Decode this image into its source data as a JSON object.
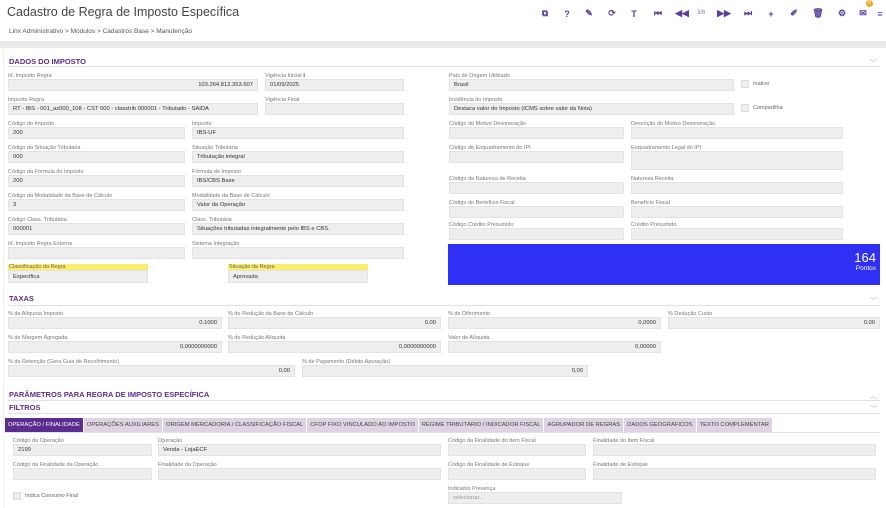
{
  "header": {
    "title": "Cadastro de Regra de Imposto Específica",
    "page_indicator": "3/6",
    "notification_count": "0",
    "tools": [
      {
        "icon": "copy-icon",
        "glyph": "⧉"
      },
      {
        "icon": "help-icon",
        "glyph": "?"
      },
      {
        "icon": "eraser-icon",
        "glyph": "✎"
      },
      {
        "icon": "refresh-icon",
        "glyph": "⟳"
      },
      {
        "icon": "filter-icon",
        "glyph": "T"
      },
      {
        "icon": "first-icon",
        "glyph": "⏮"
      },
      {
        "icon": "previous-icon",
        "glyph": "◀◀"
      },
      {
        "icon": "next-icon",
        "glyph": "▶▶"
      },
      {
        "icon": "last-icon",
        "glyph": "⏭"
      },
      {
        "icon": "add-icon",
        "glyph": "+"
      },
      {
        "icon": "edit-icon",
        "glyph": "✐"
      },
      {
        "icon": "delete-icon",
        "glyph": "🗑"
      },
      {
        "icon": "settings-icon",
        "glyph": "⚙"
      },
      {
        "icon": "inbox-icon",
        "glyph": "✉"
      },
      {
        "icon": "menu-icon",
        "glyph": "≡"
      }
    ]
  },
  "breadcrumb": "Linx Administrativo  >  Módulos  >  Cadastros Base  >  Manutenção",
  "sections": {
    "dados": "DADOS DO IMPOSTO",
    "taxas": "TAXAS",
    "parametros": "PARÂMETROS PARA REGRA DE IMPOSTO ESPECÍFICA",
    "filtros": "FILTROS"
  },
  "dados": {
    "id_regra": {
      "label": "Id. Imposto Regra",
      "value": "103.264.812.353.607"
    },
    "vig_ini": {
      "label": "Vigência Inicial ℹ",
      "value": "01/09/2025"
    },
    "imposto_regra": {
      "label": "Imposto Regra",
      "value": "RT - IBS - 001_az000_108 - CST 000 - classtrib 000001 - Tributado - SAIDA"
    },
    "vig_fim": {
      "label": "Vigência Final",
      "value": ""
    },
    "cod_imposto": {
      "label": "Código do Imposto",
      "value": "200"
    },
    "imposto": {
      "label": "Imposto",
      "value": "IBS-UF"
    },
    "cod_sit": {
      "label": "Código da Situação Tributária",
      "value": "000"
    },
    "sit": {
      "label": "Situação Tributária",
      "value": "Tributação integral"
    },
    "cod_form": {
      "label": "Código da Fórmula do Imposto",
      "value": "200"
    },
    "form": {
      "label": "Fórmula do Imposto",
      "value": "IBS/CBS Base"
    },
    "cod_mod": {
      "label": "Código da Modalidade da Base de Cálculo",
      "value": "3"
    },
    "mod": {
      "label": "Modalidade da Base de Cálculo",
      "value": "Valor da Operação"
    },
    "cod_class": {
      "label": "Código Class. Tributária",
      "value": "000001"
    },
    "class": {
      "label": "Class. Tributária",
      "value": "Situações tributadas integralmente pelo IBS e CBS."
    },
    "id_ext": {
      "label": "Id. Imposto Regra Externa",
      "value": ""
    },
    "sis_int": {
      "label": "Sistema Integração",
      "value": ""
    },
    "classif": {
      "label": "Classificação da Regra",
      "value": "Especifica"
    },
    "situacao": {
      "label": "Situação da Regra",
      "value": "Aprovada"
    },
    "pais": {
      "label": "País de Origem Utilizado",
      "value": "Brasil"
    },
    "incid": {
      "label": "Incidência do Imposto",
      "value": "Destaca valor do Imposto (ICMS sobre valor da Nota)"
    },
    "cod_mot": {
      "label": "Código do Motivo Desoneração",
      "value": ""
    },
    "desc_mot": {
      "label": "Descrição do Motivo Desoneração",
      "value": ""
    },
    "cod_enq": {
      "label": "Código de Enquadramento do IPI",
      "value": ""
    },
    "enq": {
      "label": "Enquadramento Legal do IPI",
      "value": ""
    },
    "cod_nat": {
      "label": "Código da Natureza de Receita",
      "value": ""
    },
    "nat": {
      "label": "Natureza Receita",
      "value": ""
    },
    "cod_ben": {
      "label": "Código do Benefício Fiscal",
      "value": ""
    },
    "ben": {
      "label": "Benefício Fiscal",
      "value": ""
    },
    "cod_cred": {
      "label": "Código Crédito Presumido",
      "value": ""
    },
    "cred": {
      "label": "Crédito Presumido",
      "value": ""
    },
    "inativo": {
      "label": "Inativo",
      "checked": false
    },
    "compartilha": {
      "label": "Compartilha",
      "checked": false
    },
    "score": {
      "value": "164",
      "label": "Pontos",
      "color": "#2f2ff5"
    }
  },
  "taxas": {
    "aliq": {
      "label": "% de Alíquota Imposto",
      "value": "0,1000"
    },
    "red_base": {
      "label": "% de Redução da Base de Cálculo",
      "value": "0,00"
    },
    "dif": {
      "label": "% de Diferimento",
      "value": "0,0000"
    },
    "ded": {
      "label": "% Dedução Custo",
      "value": "0,00"
    },
    "margem": {
      "label": "% de Margem Agregada",
      "value": "0,0000000000"
    },
    "red_aliq": {
      "label": "% de Redução Alíquota",
      "value": "0,0000000000"
    },
    "valor_aliq": {
      "label": "Valor de Alíquota",
      "value": "0,00000"
    },
    "ret": {
      "label": "% de Retenção (Gera Guia de Recolhimento)",
      "value": "0,00"
    },
    "pag": {
      "label": "% de Pagamento (Débito Apuração)",
      "value": "0,00"
    }
  },
  "tabs": [
    "OPERAÇÃO / FINALIDADE",
    "OPERAÇÕES AUXILIARES",
    "ORIGEM MERCADORIA / CLASSIFICAÇÃO FISCAL",
    "CFOP FIXO VINCULADO AO IMPOSTO",
    "REGIME TRIBUTÁRIO / INDICADOR FISCAL",
    "AGRUPADOR DE REGRAS",
    "DADOS GEOGRÁFICOS",
    "TEXTO COMPLEMENTAR"
  ],
  "active_tab": "OPERAÇÃO / FINALIDADE",
  "operacao": {
    "cod_op": {
      "label": "Código da Operação",
      "value": "2199"
    },
    "op": {
      "label": "Operação",
      "value": "Venda - LojaECF"
    },
    "cod_fin_item": {
      "label": "Código da Finalidade do Item Fiscal",
      "value": ""
    },
    "fin_item": {
      "label": "Finalidade do Item Fiscal",
      "value": ""
    },
    "cod_fin_op": {
      "label": "Código da Finalidade da Operação",
      "value": ""
    },
    "fin_op": {
      "label": "Finalidade da Operação",
      "value": ""
    },
    "cod_fin_est": {
      "label": "Código da Finalidade de Estoque",
      "value": ""
    },
    "fin_est": {
      "label": "Finalidade de Estoque",
      "value": ""
    },
    "consumo_final": {
      "label": "Indica Consumo Final",
      "checked": false
    },
    "ind_pres": {
      "label": "Indicador Presença",
      "placeholder": "selecionar..."
    }
  },
  "colors": {
    "accent": "#5b2d8e",
    "highlight": "#fbee6e",
    "score_box": "#2f2ff5"
  }
}
